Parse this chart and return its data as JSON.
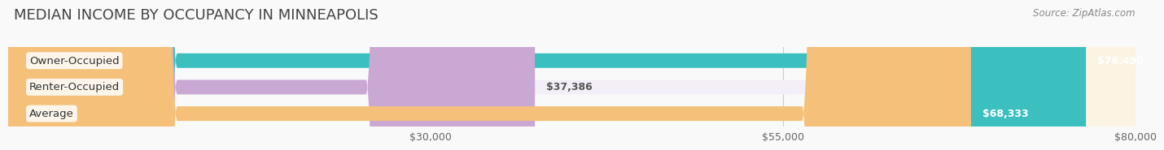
{
  "title": "MEDIAN INCOME BY OCCUPANCY IN MINNEAPOLIS",
  "source": "Source: ZipAtlas.com",
  "categories": [
    "Owner-Occupied",
    "Renter-Occupied",
    "Average"
  ],
  "values": [
    76490,
    37386,
    68333
  ],
  "labels": [
    "$76,490",
    "$37,386",
    "$68,333"
  ],
  "bar_colors": [
    "#3bbfbf",
    "#c9a8d4",
    "#f5c07a"
  ],
  "bar_bg_colors": [
    "#e8f8f8",
    "#f3eef7",
    "#fdf3e3"
  ],
  "xlim": [
    0,
    80000
  ],
  "xticks": [
    30000,
    55000,
    80000
  ],
  "xtick_labels": [
    "$30,000",
    "$55,000",
    "$80,000"
  ],
  "background_color": "#f9f9f9",
  "bar_height": 0.55,
  "title_fontsize": 13,
  "label_fontsize": 9.5,
  "tick_fontsize": 9,
  "source_fontsize": 8.5,
  "value_fontsize": 9
}
